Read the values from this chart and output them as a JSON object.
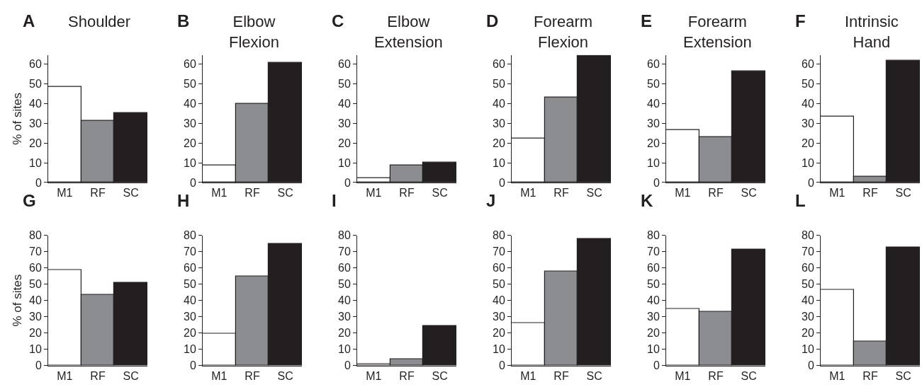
{
  "chart_data": [
    {
      "type": "bar",
      "title": "Shoulder",
      "annotations": [
        "A"
      ],
      "ylabel": "% of sites",
      "categories": [
        "M1",
        "RF",
        "SC"
      ],
      "values": [
        48.3,
        31.3,
        35.3
      ],
      "colors": [
        "#ffffff",
        "#8c8d91",
        "#231f20"
      ],
      "ylim": [
        0,
        64.5
      ],
      "yticks": [
        0,
        10,
        20,
        30,
        40,
        50,
        60
      ]
    },
    {
      "type": "bar",
      "title": "Elbow\nFlexion",
      "annotations": [
        "B"
      ],
      "categories": [
        "M1",
        "RF",
        "SC"
      ],
      "values": [
        8.7,
        39.9,
        60.4
      ],
      "colors": [
        "#ffffff",
        "#8c8d91",
        "#231f20"
      ],
      "ylim": [
        0,
        64.5
      ],
      "yticks": [
        0,
        10,
        20,
        30,
        40,
        50,
        60
      ]
    },
    {
      "type": "bar",
      "title": "Elbow\nExtension",
      "annotations": [
        "C"
      ],
      "categories": [
        "M1",
        "RF",
        "SC"
      ],
      "values": [
        2.1,
        8.7,
        10
      ],
      "colors": [
        "#ffffff",
        "#8c8d91",
        "#231f20"
      ],
      "ylim": [
        0,
        64.5
      ],
      "yticks": [
        0,
        10,
        20,
        30,
        40,
        50,
        60
      ]
    },
    {
      "type": "bar",
      "title": "Forearm\nFlexion",
      "annotations": [
        "D"
      ],
      "categories": [
        "M1",
        "RF",
        "SC"
      ],
      "values": [
        22.1,
        42.9,
        64
      ],
      "colors": [
        "#ffffff",
        "#8c8d91",
        "#231f20"
      ],
      "ylim": [
        0,
        64.5
      ],
      "yticks": [
        0,
        10,
        20,
        30,
        40,
        50,
        60
      ]
    },
    {
      "type": "bar",
      "title": "Forearm\nExtension",
      "annotations": [
        "E"
      ],
      "categories": [
        "M1",
        "RF",
        "SC"
      ],
      "values": [
        26.4,
        22.9,
        56.3
      ],
      "colors": [
        "#ffffff",
        "#8c8d91",
        "#231f20"
      ],
      "ylim": [
        0,
        64.5
      ],
      "yticks": [
        0,
        10,
        20,
        30,
        40,
        50,
        60
      ]
    },
    {
      "type": "bar",
      "title": "Intrinsic\nHand",
      "annotations": [
        "F"
      ],
      "categories": [
        "M1",
        "RF",
        "SC"
      ],
      "values": [
        33.3,
        2.9,
        61.7
      ],
      "colors": [
        "#ffffff",
        "#8c8d91",
        "#231f20"
      ],
      "ylim": [
        0,
        64.5
      ],
      "yticks": [
        0,
        10,
        20,
        30,
        40,
        50,
        60
      ]
    },
    {
      "type": "bar",
      "annotations": [
        "G"
      ],
      "ylabel": "% of sites",
      "categories": [
        "M1",
        "RF",
        "SC"
      ],
      "values": [
        58.9,
        43.4,
        50.8
      ],
      "colors": [
        "#ffffff",
        "#8c8d91",
        "#231f20"
      ],
      "ylim": [
        0,
        80
      ],
      "yticks": [
        0,
        10,
        20,
        30,
        40,
        50,
        60,
        70,
        80
      ]
    },
    {
      "type": "bar",
      "annotations": [
        "H"
      ],
      "categories": [
        "M1",
        "RF",
        "SC"
      ],
      "values": [
        19.6,
        54.9,
        74.7
      ],
      "colors": [
        "#ffffff",
        "#8c8d91",
        "#231f20"
      ],
      "ylim": [
        0,
        80
      ],
      "yticks": [
        0,
        10,
        20,
        30,
        40,
        50,
        60,
        70,
        80
      ]
    },
    {
      "type": "bar",
      "annotations": [
        "I"
      ],
      "categories": [
        "M1",
        "RF",
        "SC"
      ],
      "values": [
        0.7,
        3.9,
        24.2
      ],
      "colors": [
        "#ffffff",
        "#8c8d91",
        "#231f20"
      ],
      "ylim": [
        0,
        80
      ],
      "yticks": [
        0,
        10,
        20,
        30,
        40,
        50,
        60,
        70,
        80
      ]
    },
    {
      "type": "bar",
      "annotations": [
        "J"
      ],
      "categories": [
        "M1",
        "RF",
        "SC"
      ],
      "values": [
        26,
        57.7,
        77.7
      ],
      "colors": [
        "#ffffff",
        "#8c8d91",
        "#231f20"
      ],
      "ylim": [
        0,
        80
      ],
      "yticks": [
        0,
        10,
        20,
        30,
        40,
        50,
        60,
        70,
        80
      ]
    },
    {
      "type": "bar",
      "annotations": [
        "K"
      ],
      "categories": [
        "M1",
        "RF",
        "SC"
      ],
      "values": [
        35,
        33.1,
        71.5
      ],
      "colors": [
        "#ffffff",
        "#8c8d91",
        "#231f20"
      ],
      "ylim": [
        0,
        80
      ],
      "yticks": [
        0,
        10,
        20,
        30,
        40,
        50,
        60,
        70,
        80
      ]
    },
    {
      "type": "bar",
      "annotations": [
        "L"
      ],
      "categories": [
        "M1",
        "RF",
        "SC"
      ],
      "values": [
        46.4,
        14.7,
        72.6
      ],
      "colors": [
        "#ffffff",
        "#8c8d91",
        "#231f20"
      ],
      "ylim": [
        0,
        80
      ],
      "yticks": [
        0,
        10,
        20,
        30,
        40,
        50,
        60,
        70,
        80
      ]
    }
  ]
}
